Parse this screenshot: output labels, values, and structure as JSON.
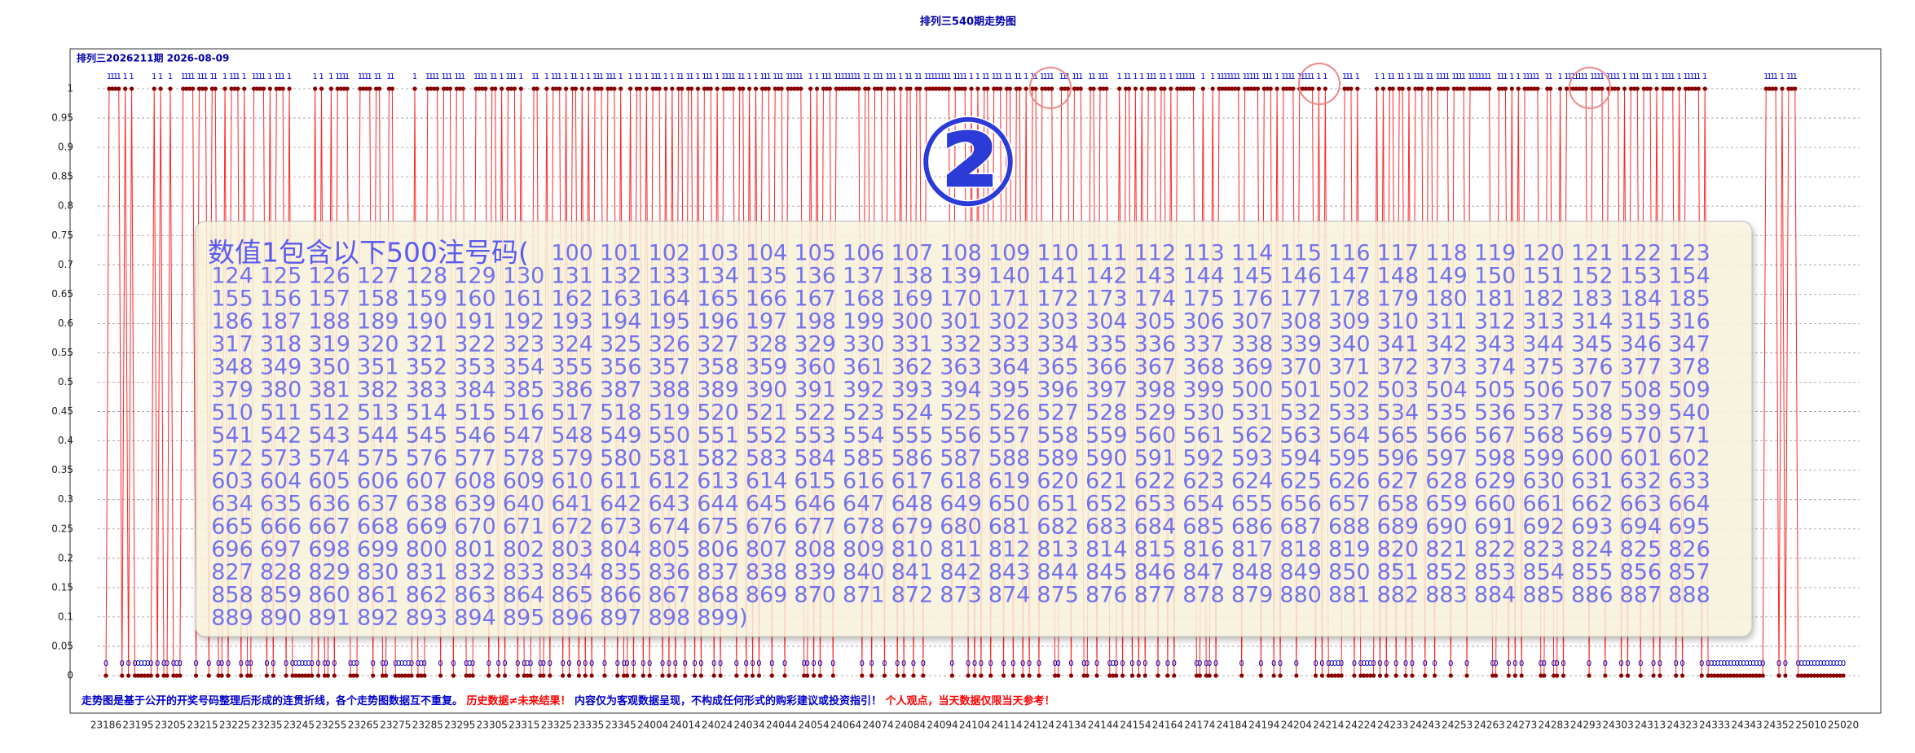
{
  "chart_data": {
    "type": "line",
    "title": "排列三540期走势图",
    "subtitle": "排列三2026211期  2026-08-09",
    "color": "#ff0000",
    "marker_color": "#8b0000",
    "grid": true,
    "ylim": [
      0,
      1
    ],
    "yticks": [
      0,
      0.05,
      0.1,
      0.15,
      0.2,
      0.25,
      0.3,
      0.35,
      0.4,
      0.45,
      0.5,
      0.55,
      0.6,
      0.65,
      0.7,
      0.75,
      0.8,
      0.85,
      0.9,
      0.95,
      1
    ],
    "categories": [
      23186,
      null,
      null,
      null,
      null,
      null,
      null,
      null,
      null,
      null,
      23195,
      null,
      null,
      null,
      null,
      null,
      null,
      null,
      null,
      null,
      23205,
      null,
      null,
      null,
      null,
      null,
      null,
      null,
      null,
      null,
      23215,
      null,
      null,
      null,
      null,
      null,
      null,
      null,
      null,
      null,
      23225,
      null,
      null,
      null,
      null,
      null,
      null,
      null,
      null,
      null,
      23235,
      null,
      null,
      null,
      null,
      null,
      null,
      null,
      null,
      null,
      23245,
      null,
      null,
      null,
      null,
      null,
      null,
      null,
      null,
      null,
      23255,
      null,
      null,
      null,
      null,
      null,
      null,
      null,
      null,
      null,
      23265,
      null,
      null,
      null,
      null,
      null,
      null,
      null,
      null,
      null,
      23275,
      null,
      null,
      null,
      null,
      null,
      null,
      null,
      null,
      null,
      23285,
      null,
      null,
      null,
      null,
      null,
      null,
      null,
      null,
      null,
      23295,
      null,
      null,
      null,
      null,
      null,
      null,
      null,
      null,
      null,
      23305,
      null,
      null,
      null,
      null,
      null,
      null,
      null,
      null,
      null,
      23315,
      null,
      null,
      null,
      null,
      null,
      null,
      null,
      null,
      null,
      23325,
      null,
      null,
      null,
      null,
      null,
      null,
      null,
      null,
      null,
      23335,
      null,
      null,
      null,
      null,
      null,
      null,
      null,
      null,
      null,
      23345,
      null,
      null,
      null,
      null,
      null,
      null,
      null,
      null,
      null,
      24004,
      null,
      null,
      null,
      null,
      null,
      null,
      null,
      null,
      null,
      24014,
      null,
      null,
      null,
      null,
      null,
      null,
      null,
      null,
      null,
      24024,
      null,
      null,
      null,
      null,
      null,
      null,
      null,
      null,
      null,
      24034,
      null,
      null,
      null,
      null,
      null,
      null,
      null,
      null,
      null,
      24044,
      null,
      null,
      null,
      null,
      null,
      null,
      null,
      null,
      null,
      24054,
      null,
      null,
      null,
      null,
      null,
      null,
      null,
      null,
      null,
      24064,
      null,
      null,
      null,
      null,
      null,
      null,
      null,
      null,
      null,
      24074,
      null,
      null,
      null,
      null,
      null,
      null,
      null,
      null,
      null,
      24084,
      null,
      null,
      null,
      null,
      null,
      null,
      null,
      null,
      null,
      24094,
      null,
      null,
      null,
      null,
      null,
      null,
      null,
      null,
      null,
      24104,
      null,
      null,
      null,
      null,
      null,
      null,
      null,
      null,
      null,
      24114,
      null,
      null,
      null,
      null,
      null,
      null,
      null,
      null,
      null,
      24124,
      null,
      null,
      null,
      null,
      null,
      null,
      null,
      null,
      null,
      24134,
      null,
      null,
      null,
      null,
      null,
      null,
      null,
      null,
      null,
      24144,
      null,
      null,
      null,
      null,
      null,
      null,
      null,
      null,
      null,
      24154,
      null,
      null,
      null,
      null,
      null,
      null,
      null,
      null,
      null,
      24164,
      null,
      null,
      null,
      null,
      null,
      null,
      null,
      null,
      null,
      24174,
      null,
      null,
      null,
      null,
      null,
      null,
      null,
      null,
      null,
      24184,
      null,
      null,
      null,
      null,
      null,
      null,
      null,
      null,
      null,
      24194,
      null,
      null,
      null,
      null,
      null,
      null,
      null,
      null,
      null,
      24204,
      null,
      null,
      null,
      null,
      null,
      null,
      null,
      null,
      null,
      24214,
      null,
      null,
      null,
      null,
      null,
      null,
      null,
      null,
      null,
      24224,
      null,
      null,
      null,
      null,
      null,
      null,
      null,
      null,
      null,
      24233,
      null,
      null,
      null,
      null,
      null,
      null,
      null,
      null,
      null,
      24243,
      null,
      null,
      null,
      null,
      null,
      null,
      null,
      null,
      null,
      24253,
      null,
      null,
      null,
      null,
      null,
      null,
      null,
      null,
      null,
      24263,
      null,
      null,
      null,
      null,
      null,
      null,
      null,
      null,
      null,
      24273,
      null,
      null,
      null,
      null,
      null,
      null,
      null,
      null,
      null,
      24283,
      null,
      null,
      null,
      null,
      null,
      null,
      null,
      null,
      null,
      24293,
      null,
      null,
      null,
      null,
      null,
      null,
      null,
      null,
      null,
      24303,
      null,
      null,
      null,
      null,
      null,
      null,
      null,
      null,
      null,
      24313,
      null,
      null,
      null,
      null,
      null,
      null,
      null,
      null,
      null,
      24323,
      null,
      null,
      null,
      null,
      null,
      null,
      null,
      null,
      null,
      24333,
      null,
      null,
      null,
      null,
      null,
      null,
      null,
      null,
      null,
      24343,
      null,
      null,
      null,
      null,
      null,
      null,
      null,
      null,
      null,
      24352,
      null,
      null,
      null,
      null,
      null,
      null,
      null,
      null,
      null,
      25010,
      null,
      null,
      null,
      null,
      null,
      null,
      null,
      null,
      null,
      25020
    ],
    "values": [
      0,
      1,
      1,
      1,
      1,
      0,
      1,
      0,
      1,
      0,
      0,
      0,
      0,
      0,
      0,
      1,
      0,
      1,
      0,
      0,
      1,
      0,
      0,
      0,
      1,
      1,
      1,
      1,
      0,
      1,
      1,
      1,
      0,
      1,
      1,
      0,
      0,
      1,
      0,
      1,
      1,
      1,
      0,
      1,
      0,
      0,
      1,
      1,
      1,
      1,
      0,
      1,
      0,
      1,
      1,
      1,
      0,
      1,
      0,
      0,
      0,
      0,
      0,
      0,
      0,
      1,
      0,
      1,
      0,
      0,
      1,
      0,
      1,
      1,
      1,
      1,
      0,
      0,
      0,
      1,
      1,
      1,
      1,
      0,
      1,
      1,
      0,
      0,
      1,
      1,
      0,
      0,
      0,
      0,
      0,
      0,
      1,
      0,
      0,
      0,
      1,
      1,
      1,
      1,
      0,
      1,
      1,
      1,
      0,
      1,
      1,
      1,
      0,
      0,
      0,
      1,
      1,
      1,
      1,
      0,
      1,
      1,
      0,
      1,
      0,
      1,
      1,
      1,
      0,
      1,
      0,
      0,
      0,
      1,
      1,
      0,
      0,
      1,
      0,
      1,
      1,
      1,
      0,
      1,
      0,
      1,
      1,
      0,
      1,
      0,
      1,
      0,
      1,
      1,
      1,
      0,
      1,
      1,
      1,
      0,
      1,
      0,
      0,
      1,
      0,
      1,
      1,
      0,
      1,
      0,
      1,
      1,
      1,
      0,
      1,
      0,
      1,
      0,
      1,
      1,
      0,
      1,
      1,
      0,
      1,
      0,
      1,
      1,
      1,
      0,
      1,
      0,
      1,
      1,
      1,
      1,
      0,
      1,
      1,
      0,
      1,
      0,
      1,
      0,
      1,
      1,
      1,
      0,
      1,
      1,
      1,
      0,
      1,
      1,
      1,
      1,
      1,
      0,
      0,
      1,
      0,
      1,
      0,
      1,
      1,
      1,
      0,
      1,
      1,
      1,
      1,
      1,
      1,
      1,
      1,
      0,
      1,
      1,
      0,
      1,
      1,
      1,
      0,
      1,
      1,
      1,
      0,
      1,
      0,
      1,
      1,
      0,
      1,
      1,
      0,
      1,
      1,
      1,
      1,
      1,
      1,
      1,
      1,
      0,
      1,
      1,
      1,
      1,
      0,
      1,
      0,
      1,
      0,
      1,
      1,
      0,
      1,
      1,
      1,
      0,
      1,
      1,
      0,
      1,
      1,
      0,
      1,
      0,
      1,
      1,
      0,
      1,
      1,
      1,
      1,
      0,
      0,
      1,
      1,
      1,
      0,
      1,
      1,
      1,
      0,
      0,
      1,
      1,
      0,
      1,
      1,
      1,
      0,
      0,
      0,
      1,
      0,
      1,
      1,
      0,
      1,
      0,
      1,
      0,
      1,
      1,
      1,
      0,
      1,
      1,
      0,
      1,
      0,
      1,
      1,
      1,
      1,
      1,
      1,
      0,
      0,
      1,
      0,
      0,
      1,
      0,
      1,
      1,
      1,
      1,
      1,
      1,
      1,
      0,
      1,
      1,
      1,
      1,
      1,
      0,
      1,
      1,
      1,
      0,
      1,
      0,
      1,
      1,
      1,
      1,
      0,
      1,
      1,
      1,
      1,
      1,
      0,
      1,
      0,
      1,
      0,
      0,
      0,
      0,
      0,
      1,
      1,
      1,
      0,
      1,
      0,
      0,
      0,
      0,
      0,
      1,
      0,
      1,
      0,
      1,
      1,
      0,
      1,
      1,
      0,
      1,
      0,
      1,
      1,
      1,
      0,
      1,
      1,
      0,
      1,
      1,
      1,
      1,
      0,
      1,
      1,
      1,
      1,
      0,
      1,
      1,
      1,
      1,
      1,
      1,
      1,
      0,
      0,
      1,
      1,
      1,
      0,
      1,
      0,
      1,
      0,
      1,
      1,
      1,
      1,
      1,
      0,
      0,
      1,
      1,
      0,
      0,
      1,
      0,
      1,
      1,
      1,
      1,
      1,
      1,
      1,
      0,
      1,
      1,
      1,
      1,
      0,
      1,
      1,
      1,
      1,
      0,
      1,
      0,
      1,
      1,
      1,
      0,
      1,
      1,
      1,
      0,
      1,
      0,
      1,
      1,
      1,
      1,
      0,
      1,
      0,
      1,
      1,
      1,
      1,
      1,
      0,
      1,
      0,
      0,
      0,
      0,
      0,
      0,
      0,
      0,
      0,
      0,
      0,
      0,
      0,
      0,
      0,
      0,
      0,
      0,
      1,
      1,
      1,
      1,
      0,
      1,
      0,
      1,
      1,
      1,
      0,
      0,
      0,
      0,
      0,
      0,
      0,
      0,
      0,
      0,
      0,
      0,
      0,
      0,
      0
    ],
    "footer": [
      "走势图是基于公开的开奖号码整理后形成的连贯折线，各个走势图数据互不重复。",
      "历史数据≠未来结果！",
      "内容仅为客观数据呈现，不构成任何形式的购彩建议或投资指引！",
      "个人观点，当天数据仅限当天参考！"
    ],
    "annotations": {
      "marker": "②",
      "heading": "数值1包含以下500注号码(",
      "closing": ")",
      "numbers": [
        100,
        101,
        102,
        103,
        104,
        105,
        106,
        107,
        108,
        109,
        110,
        111,
        112,
        113,
        114,
        115,
        116,
        117,
        118,
        119,
        120,
        121,
        122,
        123,
        124,
        125,
        126,
        127,
        128,
        129,
        130,
        131,
        132,
        133,
        134,
        135,
        136,
        137,
        138,
        139,
        140,
        141,
        142,
        143,
        144,
        145,
        146,
        147,
        148,
        149,
        150,
        151,
        152,
        153,
        154,
        155,
        156,
        157,
        158,
        159,
        160,
        161,
        162,
        163,
        164,
        165,
        166,
        167,
        168,
        169,
        170,
        171,
        172,
        173,
        174,
        175,
        176,
        177,
        178,
        179,
        180,
        181,
        182,
        183,
        184,
        185,
        186,
        187,
        188,
        189,
        190,
        191,
        192,
        193,
        194,
        195,
        196,
        197,
        198,
        199,
        300,
        301,
        302,
        303,
        304,
        305,
        306,
        307,
        308,
        309,
        310,
        311,
        312,
        313,
        314,
        315,
        316,
        317,
        318,
        319,
        320,
        321,
        322,
        323,
        324,
        325,
        326,
        327,
        328,
        329,
        330,
        331,
        332,
        333,
        334,
        335,
        336,
        337,
        338,
        339,
        340,
        341,
        342,
        343,
        344,
        345,
        346,
        347,
        348,
        349,
        350,
        351,
        352,
        353,
        354,
        355,
        356,
        357,
        358,
        359,
        360,
        361,
        362,
        363,
        364,
        365,
        366,
        367,
        368,
        369,
        370,
        371,
        372,
        373,
        374,
        375,
        376,
        377,
        378,
        379,
        380,
        381,
        382,
        383,
        384,
        385,
        386,
        387,
        388,
        389,
        390,
        391,
        392,
        393,
        394,
        395,
        396,
        397,
        398,
        399,
        500,
        501,
        502,
        503,
        504,
        505,
        506,
        507,
        508,
        509,
        510,
        511,
        512,
        513,
        514,
        515,
        516,
        517,
        518,
        519,
        520,
        521,
        522,
        523,
        524,
        525,
        526,
        527,
        528,
        529,
        530,
        531,
        532,
        533,
        534,
        535,
        536,
        537,
        538,
        539,
        540,
        541,
        542,
        543,
        544,
        545,
        546,
        547,
        548,
        549,
        550,
        551,
        552,
        553,
        554,
        555,
        556,
        557,
        558,
        559,
        560,
        561,
        562,
        563,
        564,
        565,
        566,
        567,
        568,
        569,
        570,
        571,
        572,
        573,
        574,
        575,
        576,
        577,
        578,
        579,
        580,
        581,
        582,
        583,
        584,
        585,
        586,
        587,
        588,
        589,
        590,
        591,
        592,
        593,
        594,
        595,
        596,
        597,
        598,
        599,
        600,
        601,
        602,
        603,
        604,
        605,
        606,
        607,
        608,
        609,
        610,
        611,
        612,
        613,
        614,
        615,
        616,
        617,
        618,
        619,
        620,
        621,
        622,
        623,
        624,
        625,
        626,
        627,
        628,
        629,
        630,
        631,
        632,
        633,
        634,
        635,
        636,
        637,
        638,
        639,
        640,
        641,
        642,
        643,
        644,
        645,
        646,
        647,
        648,
        649,
        650,
        651,
        652,
        653,
        654,
        655,
        656,
        657,
        658,
        659,
        660,
        661,
        662,
        663,
        664,
        665,
        666,
        667,
        668,
        669,
        670,
        671,
        672,
        673,
        674,
        675,
        676,
        677,
        678,
        679,
        680,
        681,
        682,
        683,
        684,
        685,
        686,
        687,
        688,
        689,
        690,
        691,
        692,
        693,
        694,
        695,
        696,
        697,
        698,
        699,
        800,
        801,
        802,
        803,
        804,
        805,
        806,
        807,
        808,
        809,
        810,
        811,
        812,
        813,
        814,
        815,
        816,
        817,
        818,
        819,
        820,
        821,
        822,
        823,
        824,
        825,
        826,
        827,
        828,
        829,
        830,
        831,
        832,
        833,
        834,
        835,
        836,
        837,
        838,
        839,
        840,
        841,
        842,
        843,
        844,
        845,
        846,
        847,
        848,
        849,
        850,
        851,
        852,
        853,
        854,
        855,
        856,
        857,
        858,
        859,
        860,
        861,
        862,
        863,
        864,
        865,
        866,
        867,
        868,
        869,
        870,
        871,
        872,
        873,
        874,
        875,
        876,
        877,
        878,
        879,
        880,
        881,
        882,
        883,
        884,
        885,
        886,
        887,
        888,
        889,
        890,
        891,
        892,
        893,
        894,
        895,
        896,
        897,
        898,
        899
      ]
    }
  }
}
